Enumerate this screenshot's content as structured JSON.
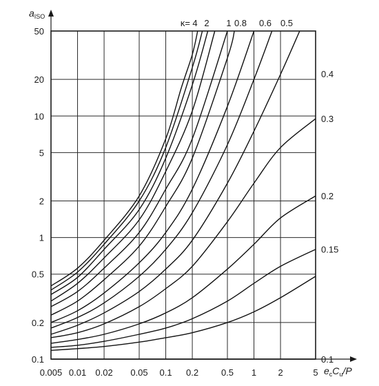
{
  "chart_data": {
    "type": "line",
    "title": "",
    "ylabel": {
      "main": "a",
      "sub": "ISO"
    },
    "xlabel": {
      "e": "e",
      "e_sub": "c",
      "c": "C",
      "c_sub": "u",
      "rest": "/P"
    },
    "x_scale": "log",
    "y_scale": "log",
    "xlim": [
      0.005,
      5
    ],
    "ylim": [
      0.1,
      50
    ],
    "x_ticks": [
      0.005,
      0.01,
      0.02,
      0.05,
      0.1,
      0.2,
      0.5,
      1,
      2,
      5
    ],
    "x_tick_labels": [
      "0.005",
      "0.01",
      "0.02",
      "0.05",
      "0.1",
      "0.2",
      "0.5",
      "1",
      "2",
      "5"
    ],
    "y_ticks": [
      0.1,
      0.2,
      0.5,
      1,
      2,
      5,
      10,
      20,
      50
    ],
    "y_tick_labels": [
      "0.1",
      "0.2",
      "0.5",
      "1",
      "2",
      "5",
      "10",
      "20",
      "50"
    ],
    "grid": true,
    "kappa_prefix": "κ=",
    "series": [
      {
        "name": "4",
        "label_pos": "top",
        "points": [
          [
            0.005,
            0.4
          ],
          [
            0.01,
            0.56
          ],
          [
            0.02,
            0.95
          ],
          [
            0.05,
            2.2
          ],
          [
            0.1,
            6.5
          ],
          [
            0.15,
            17
          ],
          [
            0.2,
            32
          ],
          [
            0.23,
            50
          ]
        ]
      },
      {
        "name": "2",
        "label_pos": "top",
        "points": [
          [
            0.005,
            0.37
          ],
          [
            0.01,
            0.52
          ],
          [
            0.02,
            0.88
          ],
          [
            0.05,
            2.0
          ],
          [
            0.1,
            5.5
          ],
          [
            0.2,
            25
          ],
          [
            0.26,
            50
          ]
        ]
      },
      {
        "name": "",
        "label_pos": "none",
        "points": [
          [
            0.005,
            0.34
          ],
          [
            0.01,
            0.47
          ],
          [
            0.02,
            0.8
          ],
          [
            0.05,
            1.7
          ],
          [
            0.1,
            4.5
          ],
          [
            0.2,
            18
          ],
          [
            0.3,
            50
          ]
        ]
      },
      {
        "name": "",
        "label_pos": "none",
        "points": [
          [
            0.005,
            0.3
          ],
          [
            0.01,
            0.42
          ],
          [
            0.02,
            0.68
          ],
          [
            0.05,
            1.4
          ],
          [
            0.1,
            3.5
          ],
          [
            0.2,
            11
          ],
          [
            0.36,
            50
          ]
        ]
      },
      {
        "name": "1",
        "label_pos": "top",
        "points": [
          [
            0.005,
            0.27
          ],
          [
            0.01,
            0.36
          ],
          [
            0.02,
            0.56
          ],
          [
            0.05,
            1.1
          ],
          [
            0.1,
            2.5
          ],
          [
            0.2,
            6.5
          ],
          [
            0.5,
            50
          ]
        ]
      },
      {
        "name": "0.8",
        "label_pos": "top",
        "points": [
          [
            0.005,
            0.23
          ],
          [
            0.01,
            0.3
          ],
          [
            0.02,
            0.45
          ],
          [
            0.05,
            0.85
          ],
          [
            0.1,
            1.8
          ],
          [
            0.2,
            4.5
          ],
          [
            0.5,
            30
          ],
          [
            0.6,
            50
          ]
        ]
      },
      {
        "name": "0.6",
        "label_pos": "top",
        "points": [
          [
            0.005,
            0.2
          ],
          [
            0.01,
            0.25
          ],
          [
            0.02,
            0.35
          ],
          [
            0.05,
            0.62
          ],
          [
            0.1,
            1.1
          ],
          [
            0.2,
            2.5
          ],
          [
            0.5,
            12
          ],
          [
            1,
            50
          ]
        ]
      },
      {
        "name": "0.5",
        "label_pos": "top",
        "points": [
          [
            0.005,
            0.18
          ],
          [
            0.01,
            0.22
          ],
          [
            0.02,
            0.29
          ],
          [
            0.05,
            0.48
          ],
          [
            0.1,
            0.8
          ],
          [
            0.2,
            1.6
          ],
          [
            0.5,
            5.8
          ],
          [
            1,
            20
          ],
          [
            1.6,
            50
          ]
        ]
      },
      {
        "name": "0.4",
        "label_pos": "right",
        "points": [
          [
            0.005,
            0.16
          ],
          [
            0.01,
            0.19
          ],
          [
            0.02,
            0.24
          ],
          [
            0.05,
            0.36
          ],
          [
            0.1,
            0.55
          ],
          [
            0.2,
            0.95
          ],
          [
            0.5,
            2.8
          ],
          [
            1,
            7.5
          ],
          [
            2,
            22
          ],
          [
            3.3,
            50
          ]
        ]
      },
      {
        "name": "0.3",
        "label_pos": "right",
        "points": [
          [
            0.005,
            0.15
          ],
          [
            0.01,
            0.165
          ],
          [
            0.02,
            0.195
          ],
          [
            0.05,
            0.27
          ],
          [
            0.1,
            0.38
          ],
          [
            0.2,
            0.58
          ],
          [
            0.5,
            1.35
          ],
          [
            1,
            2.8
          ],
          [
            2,
            5.5
          ],
          [
            5,
            9.5
          ]
        ]
      },
      {
        "name": "0.2",
        "label_pos": "right",
        "points": [
          [
            0.005,
            0.135
          ],
          [
            0.01,
            0.145
          ],
          [
            0.02,
            0.16
          ],
          [
            0.05,
            0.195
          ],
          [
            0.1,
            0.24
          ],
          [
            0.2,
            0.32
          ],
          [
            0.5,
            0.55
          ],
          [
            1,
            0.88
          ],
          [
            2,
            1.45
          ],
          [
            5,
            2.2
          ]
        ]
      },
      {
        "name": "0.15",
        "label_pos": "right",
        "points": [
          [
            0.005,
            0.125
          ],
          [
            0.01,
            0.13
          ],
          [
            0.02,
            0.14
          ],
          [
            0.05,
            0.16
          ],
          [
            0.1,
            0.18
          ],
          [
            0.2,
            0.215
          ],
          [
            0.5,
            0.3
          ],
          [
            1,
            0.42
          ],
          [
            2,
            0.58
          ],
          [
            5,
            0.8
          ]
        ]
      },
      {
        "name": "",
        "label_pos": "none",
        "points": [
          [
            0.005,
            0.118
          ],
          [
            0.01,
            0.122
          ],
          [
            0.02,
            0.127
          ],
          [
            0.05,
            0.138
          ],
          [
            0.1,
            0.15
          ],
          [
            0.2,
            0.165
          ],
          [
            0.5,
            0.2
          ],
          [
            1,
            0.245
          ],
          [
            2,
            0.32
          ],
          [
            5,
            0.48
          ]
        ]
      },
      {
        "name": "0.1",
        "label_pos": "right",
        "points": [
          [
            0.005,
            0.1
          ],
          [
            5,
            0.1
          ]
        ]
      }
    ]
  }
}
